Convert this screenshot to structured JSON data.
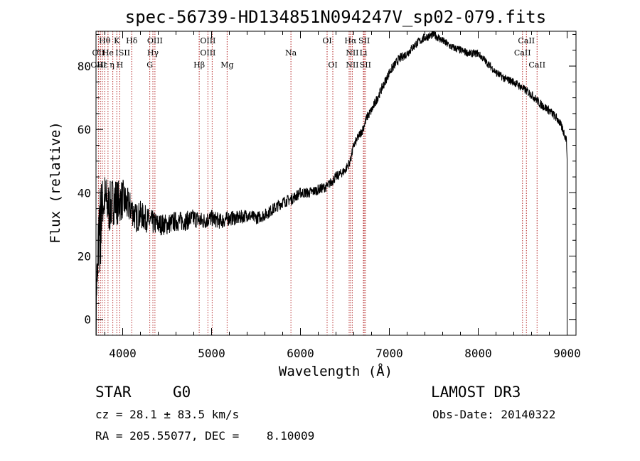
{
  "chart_data": {
    "type": "line",
    "title": "spec-56739-HD134851N094247V_sp02-079.fits",
    "xlabel": "Wavelength (Å)",
    "ylabel": "Flux (relative)",
    "xlim": [
      3700,
      9100
    ],
    "ylim": [
      -5,
      91
    ],
    "xticks": [
      4000,
      5000,
      6000,
      7000,
      8000,
      9000
    ],
    "yticks": [
      0,
      20,
      40,
      60,
      80
    ],
    "series": [
      {
        "name": "flux",
        "anchors_x": [
          3700,
          3720,
          3750,
          3800,
          3850,
          3900,
          3950,
          4000,
          4050,
          4100,
          4150,
          4200,
          4300,
          4400,
          4500,
          4600,
          4700,
          4800,
          4900,
          5000,
          5100,
          5200,
          5300,
          5400,
          5500,
          5600,
          5700,
          5800,
          5900,
          6000,
          6100,
          6200,
          6300,
          6400,
          6500,
          6560,
          6600,
          6700,
          6750,
          6800,
          6900,
          7000,
          7100,
          7200,
          7300,
          7400,
          7500,
          7600,
          7700,
          7800,
          7900,
          8000,
          8100,
          8200,
          8300,
          8400,
          8500,
          8600,
          8700,
          8800,
          8900,
          8950,
          8990,
          9000
        ],
        "anchors_y": [
          5,
          20,
          35,
          38,
          35,
          38,
          37,
          38,
          36,
          35,
          32,
          33,
          31,
          30,
          30,
          31,
          31,
          32,
          31,
          32,
          31,
          32,
          32,
          33,
          32,
          33,
          35,
          37,
          38,
          40,
          40,
          41,
          42,
          45,
          47,
          50,
          55,
          60,
          64,
          66,
          72,
          78,
          82,
          84,
          87,
          89,
          90,
          88,
          86,
          85,
          84,
          84,
          81,
          78,
          76,
          75,
          73,
          71,
          68,
          66,
          63,
          60,
          57,
          52
        ],
        "noise": [
          [
            3700,
            9
          ],
          [
            3900,
            8
          ],
          [
            4100,
            5
          ],
          [
            4400,
            3.5
          ],
          [
            5500,
            2
          ],
          [
            6500,
            1.5
          ],
          [
            7000,
            1.5
          ],
          [
            8000,
            1.2
          ],
          [
            9000,
            1.5
          ]
        ]
      }
    ],
    "spectral_lines": [
      {
        "label": "Hθ",
        "x": 3798,
        "row": 0
      },
      {
        "label": "OII",
        "x": 3727,
        "row": 1
      },
      {
        "label": "OIII",
        "x": 3727,
        "row": 2
      },
      {
        "label": "Hε",
        "x": 3770,
        "row": 2
      },
      {
        "label": "He",
        "x": 3835,
        "row": 1
      },
      {
        "label": "η",
        "x": 3880,
        "row": 2
      },
      {
        "label": "K",
        "x": 3934,
        "row": 0
      },
      {
        "label": "I",
        "x": 3935,
        "row": 1
      },
      {
        "label": "H",
        "x": 3968,
        "row": 2
      },
      {
        "label": "SII",
        "x": 4020,
        "row": 1
      },
      {
        "label": "Hδ",
        "x": 4102,
        "row": 0
      },
      {
        "label": "OIII",
        "x": 4363,
        "row": 0
      },
      {
        "label": "Hγ",
        "x": 4340,
        "row": 1
      },
      {
        "label": "G",
        "x": 4305,
        "row": 2
      },
      {
        "label": "OIII",
        "x": 4959,
        "row": 0
      },
      {
        "label": "OIII",
        "x": 4959,
        "row": 1
      },
      {
        "label": "Hβ",
        "x": 4861,
        "row": 2
      },
      {
        "label": "Mg",
        "x": 5175,
        "row": 2
      },
      {
        "label": "Na",
        "x": 5893,
        "row": 1
      },
      {
        "label": "OI",
        "x": 6300,
        "row": 0
      },
      {
        "label": "OI",
        "x": 6364,
        "row": 2
      },
      {
        "label": "Hα",
        "x": 6563,
        "row": 0
      },
      {
        "label": "SII",
        "x": 6717,
        "row": 0
      },
      {
        "label": "NII",
        "x": 6583,
        "row": 1
      },
      {
        "label": "Li",
        "x": 6708,
        "row": 1
      },
      {
        "label": "NII",
        "x": 6583,
        "row": 2
      },
      {
        "label": "SII",
        "x": 6731,
        "row": 2
      },
      {
        "label": "CaII",
        "x": 8542,
        "row": 0
      },
      {
        "label": "CaII",
        "x": 8498,
        "row": 1
      },
      {
        "label": "CaII",
        "x": 8662,
        "row": 2
      }
    ],
    "line_positions": [
      3727,
      3750,
      3771,
      3798,
      3835,
      3889,
      3934,
      3968,
      4102,
      4305,
      4340,
      4363,
      4861,
      4959,
      5007,
      5175,
      5893,
      6300,
      6364,
      6548,
      6563,
      6583,
      6708,
      6717,
      6731,
      8498,
      8542,
      8662
    ]
  },
  "info": {
    "object_type": "STAR",
    "subclass": "G0",
    "survey": "LAMOST DR3",
    "cz": "cz = 28.1 ± 83.5 km/s",
    "obs_date": "Obs-Date: 20140322",
    "coords": "RA = 205.55077, DEC =    8.10009"
  },
  "colors": {
    "line_marker": "#b22222",
    "spectrum": "#000000"
  }
}
